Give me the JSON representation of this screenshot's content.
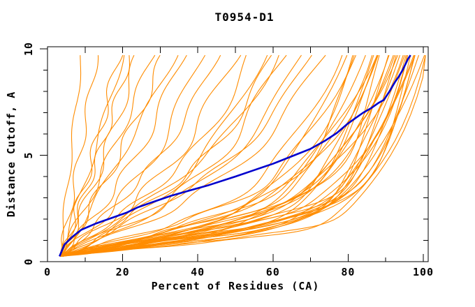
{
  "chart_data": {
    "type": "line",
    "title": "T0954-D1",
    "xlabel": "Percent of Residues (CA)",
    "ylabel": "Distance Cutoff, A",
    "xlim": [
      0,
      101.3
    ],
    "ylim": [
      0,
      10.1
    ],
    "x_ticks_major": [
      0,
      20,
      40,
      60,
      80,
      100
    ],
    "x_ticks_minor": [
      10,
      30,
      50,
      70,
      90
    ],
    "y_ticks_major": [
      0,
      5,
      10
    ],
    "y_ticks_minor": [
      1,
      2,
      3,
      4,
      6,
      7,
      8,
      9
    ],
    "top_ticks": [
      10,
      20,
      30,
      40,
      50,
      60,
      70,
      80,
      90,
      100
    ],
    "right_ticks_minor": [
      1,
      2,
      3,
      4,
      6,
      7,
      8,
      9
    ],
    "right_ticks_major": [
      5
    ],
    "grid": false,
    "legend": "none",
    "colors": {
      "model_curves": "#FF8C00",
      "highlight_curve": "#0000CD",
      "axis": "#000000",
      "background": "#FFFFFF"
    },
    "highlight_curve": {
      "label": "highlighted model",
      "points": [
        [
          3.2,
          0.25
        ],
        [
          4.5,
          0.8
        ],
        [
          6.5,
          1.15
        ],
        [
          9,
          1.5
        ],
        [
          13,
          1.8
        ],
        [
          17,
          2.05
        ],
        [
          21,
          2.3
        ],
        [
          24,
          2.55
        ],
        [
          28,
          2.8
        ],
        [
          33,
          3.1
        ],
        [
          38,
          3.35
        ],
        [
          43,
          3.6
        ],
        [
          50,
          4.0
        ],
        [
          55,
          4.3
        ],
        [
          60,
          4.6
        ],
        [
          65,
          4.95
        ],
        [
          70,
          5.3
        ],
        [
          74,
          5.7
        ],
        [
          77,
          6.05
        ],
        [
          80,
          6.5
        ],
        [
          82,
          6.75
        ],
        [
          84,
          7.0
        ],
        [
          86,
          7.2
        ],
        [
          88,
          7.45
        ],
        [
          89.5,
          7.6
        ],
        [
          91,
          8.0
        ],
        [
          92.5,
          8.45
        ],
        [
          93.5,
          8.7
        ],
        [
          94.5,
          9.0
        ],
        [
          95.3,
          9.3
        ],
        [
          96,
          9.55
        ],
        [
          96.6,
          9.7
        ]
      ]
    },
    "model_curves": {
      "label": "model curves",
      "count": 55,
      "start_point": [
        3.2,
        0.25
      ],
      "y_top": 9.7,
      "param_format": [
        "x_at_top_percent",
        "linear_coeff",
        "power_exponent",
        "wiggle_amp",
        "wiggle_cycles",
        "wiggle_phase"
      ],
      "params": [
        [
          9,
          9.0,
          2,
          0.5,
          2.5,
          0.1
        ],
        [
          13,
          8.6,
          2.5,
          0.8,
          3,
          0.4
        ],
        [
          19,
          8.0,
          2.2,
          1.1,
          3.5,
          0.7
        ],
        [
          20,
          8.8,
          3,
          0.7,
          2.2,
          0.2
        ],
        [
          22,
          8.3,
          2.6,
          0.9,
          4,
          0.55
        ],
        [
          24,
          7.6,
          2.3,
          1.2,
          3,
          0.85
        ],
        [
          28,
          8.5,
          2.8,
          1.0,
          2.8,
          0.3
        ],
        [
          31,
          7.8,
          2.4,
          1.3,
          3.2,
          0.65
        ],
        [
          34,
          8.9,
          3.2,
          0.8,
          2.4,
          0.9
        ],
        [
          36,
          6.5,
          3,
          1.3,
          3,
          0.15
        ],
        [
          41,
          6.0,
          3.5,
          1.6,
          2.6,
          0.5
        ],
        [
          45,
          6.8,
          4,
          1.1,
          3.4,
          0.8
        ],
        [
          50,
          5.5,
          3.2,
          1.8,
          2.9,
          0.25
        ],
        [
          54,
          6.2,
          4.5,
          1.2,
          3.1,
          0.6
        ],
        [
          57,
          5.0,
          3.8,
          1.5,
          2.3,
          0.95
        ],
        [
          60,
          5.8,
          4.2,
          1.3,
          3.6,
          0.35
        ],
        [
          61,
          6.5,
          5,
          1.0,
          2.7,
          0.7
        ],
        [
          63,
          4.6,
          3.5,
          1.9,
          3,
          0.05
        ],
        [
          68,
          5.2,
          4,
          1.4,
          2.5,
          0.45
        ],
        [
          70,
          6.0,
          4.8,
          1.1,
          3.3,
          0.75
        ],
        [
          74,
          4.8,
          3.6,
          1.7,
          2.8,
          0.2
        ],
        [
          77,
          3.5,
          5,
          1.5,
          3,
          0.3
        ],
        [
          79,
          3.0,
          5.5,
          1.2,
          2.5,
          0.6
        ],
        [
          80,
          3.8,
          6,
          1.7,
          3.2,
          0.1
        ],
        [
          82,
          2.8,
          5,
          1.3,
          2.8,
          0.8
        ],
        [
          83,
          3.3,
          6.5,
          1.6,
          3.5,
          0.4
        ],
        [
          84,
          2.5,
          5.8,
          1.1,
          2.4,
          0.7
        ],
        [
          85,
          3.0,
          7,
          1.4,
          3.1,
          0.15
        ],
        [
          86,
          3.6,
          6.2,
          1.8,
          2.7,
          0.5
        ],
        [
          87,
          2.2,
          6.8,
          1.2,
          3.3,
          0.85
        ],
        [
          88,
          2.8,
          7.5,
          1.5,
          2.6,
          0.25
        ],
        [
          88,
          3.4,
          5.4,
          1.0,
          3,
          0.55
        ],
        [
          89,
          2.4,
          6,
          1.3,
          2.9,
          0.9
        ],
        [
          90,
          3.0,
          8,
          1.7,
          3.4,
          0.35
        ],
        [
          90,
          2.0,
          6.5,
          1.1,
          2.5,
          0.65
        ],
        [
          91,
          3.3,
          7.2,
          1.4,
          3.2,
          0.05
        ],
        [
          92,
          2.6,
          5.6,
          1.2,
          2.8,
          0.45
        ],
        [
          92,
          2.2,
          8.5,
          1.6,
          3.1,
          0.75
        ],
        [
          93,
          3.0,
          6.4,
          1.0,
          2.6,
          0.2
        ],
        [
          93,
          1.8,
          7.8,
          1.3,
          3.5,
          0.6
        ],
        [
          94,
          2.4,
          9,
          1.5,
          2.9,
          0.95
        ],
        [
          94,
          3.2,
          6,
          1.1,
          3,
          0.4
        ],
        [
          95,
          2.0,
          7.4,
          1.4,
          2.7,
          0.7
        ],
        [
          95,
          2.8,
          8.2,
          1.2,
          3.3,
          0.1
        ],
        [
          96,
          1.7,
          6.8,
          1.6,
          2.4,
          0.5
        ],
        [
          96,
          2.5,
          9.5,
          1.0,
          3.1,
          0.8
        ],
        [
          97,
          2.1,
          7,
          1.3,
          2.8,
          0.3
        ],
        [
          97,
          3.0,
          8.8,
          1.5,
          3.4,
          0.65
        ],
        [
          98,
          1.9,
          7.6,
          1.1,
          2.5,
          0.05
        ],
        [
          98,
          2.6,
          10,
          1.4,
          3.2,
          0.55
        ],
        [
          99,
          2.2,
          8.4,
          1.2,
          2.9,
          0.85
        ],
        [
          99,
          1.6,
          9.2,
          1.6,
          3,
          0.25
        ],
        [
          100,
          2.3,
          7.2,
          1.0,
          2.6,
          0.45
        ],
        [
          100,
          1.8,
          10,
          1.3,
          3.5,
          0.75
        ],
        [
          100,
          2.9,
          8.6,
          1.5,
          2.7,
          0.15
        ]
      ]
    }
  }
}
